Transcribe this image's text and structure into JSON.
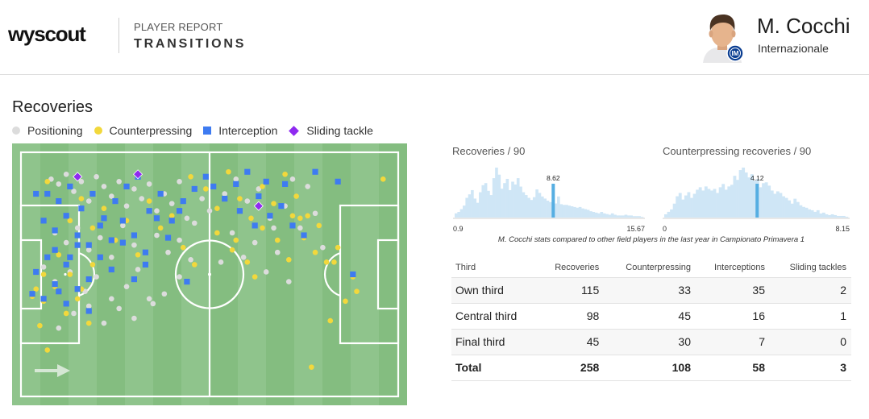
{
  "header": {
    "logo_text": "wyscout",
    "report_kind": "PLAYER REPORT",
    "report_title": "TRANSITIONS",
    "player_name": "M. Cocchi",
    "team": "Internazionale"
  },
  "recoveries": {
    "title": "Recoveries",
    "legend": [
      {
        "label": "Positioning",
        "color": "#dcdcdc",
        "shape": "circle"
      },
      {
        "label": "Counterpressing",
        "color": "#f2d83c",
        "shape": "circle"
      },
      {
        "label": "Interception",
        "color": "#3e7bf1",
        "shape": "square"
      },
      {
        "label": "Sliding tackle",
        "color": "#8f2af0",
        "shape": "diamond"
      }
    ]
  },
  "chart_data": [
    {
      "type": "scatter",
      "title": "Recoveries",
      "x_unit": "pitch length (0 = own goal line, 100 = opponent goal line)",
      "y_unit": "pitch width (0 = top touchline, 100 = bottom touchline)",
      "xlim": [
        0,
        100
      ],
      "ylim": [
        0,
        100
      ],
      "attacking_direction": "left-to-right",
      "series": [
        {
          "name": "Positioning",
          "color": "#dcdcdc",
          "shape": "circle",
          "points": [
            [
              8,
              11
            ],
            [
              10,
              13
            ],
            [
              12,
              9
            ],
            [
              14,
              16
            ],
            [
              16,
              12
            ],
            [
              18,
              20
            ],
            [
              20,
              10
            ],
            [
              22,
              14
            ],
            [
              24,
              18
            ],
            [
              26,
              12
            ],
            [
              28,
              22
            ],
            [
              30,
              15
            ],
            [
              32,
              19
            ],
            [
              34,
              13
            ],
            [
              36,
              24
            ],
            [
              38,
              17
            ],
            [
              40,
              21
            ],
            [
              42,
              12
            ],
            [
              44,
              27
            ],
            [
              9,
              33
            ],
            [
              12,
              37
            ],
            [
              15,
              31
            ],
            [
              18,
              40
            ],
            [
              21,
              35
            ],
            [
              24,
              43
            ],
            [
              27,
              30
            ],
            [
              30,
              38
            ],
            [
              33,
              46
            ],
            [
              36,
              34
            ],
            [
              39,
              41
            ],
            [
              42,
              36
            ],
            [
              45,
              44
            ],
            [
              6,
              47
            ],
            [
              9,
              53
            ],
            [
              13,
              49
            ],
            [
              17,
              57
            ],
            [
              20,
              51
            ],
            [
              24,
              60
            ],
            [
              28,
              55
            ],
            [
              31,
              48
            ],
            [
              35,
              62
            ],
            [
              38,
              58
            ],
            [
              14,
              66
            ],
            [
              18,
              63
            ],
            [
              22,
              70
            ],
            [
              26,
              64
            ],
            [
              30,
              68
            ],
            [
              34,
              60
            ],
            [
              10,
              72
            ],
            [
              42,
              51
            ],
            [
              46,
              29
            ],
            [
              48,
              19
            ],
            [
              50,
              24
            ],
            [
              54,
              17
            ],
            [
              57,
              11
            ],
            [
              60,
              20
            ],
            [
              63,
              15
            ],
            [
              66,
              27
            ],
            [
              70,
              22
            ],
            [
              72,
              11
            ],
            [
              74,
              31
            ],
            [
              56,
              33
            ],
            [
              59,
              43
            ],
            [
              62,
              37
            ],
            [
              65,
              49
            ],
            [
              68,
              41
            ],
            [
              71,
              53
            ],
            [
              67,
              31
            ],
            [
              53,
              45
            ],
            [
              76,
              14
            ],
            [
              78,
              25
            ],
            [
              80,
              39
            ]
          ]
        },
        {
          "name": "Counterpressing",
          "color": "#f2d83c",
          "shape": "circle",
          "points": [
            [
              7,
              12
            ],
            [
              10,
              20
            ],
            [
              13,
              28
            ],
            [
              16,
              19
            ],
            [
              19,
              31
            ],
            [
              22,
              23
            ],
            [
              25,
              36
            ],
            [
              28,
              28
            ],
            [
              31,
              42
            ],
            [
              34,
              20
            ],
            [
              37,
              31
            ],
            [
              40,
              26
            ],
            [
              43,
              39
            ],
            [
              46,
              46
            ],
            [
              10,
              42
            ],
            [
              13,
              50
            ],
            [
              16,
              56
            ],
            [
              19,
              46
            ],
            [
              6,
              61
            ],
            [
              9,
              55
            ],
            [
              12,
              66
            ],
            [
              15,
              60
            ],
            [
              18,
              70
            ],
            [
              6,
              50
            ],
            [
              3,
              59
            ],
            [
              5,
              71
            ],
            [
              7,
              81
            ],
            [
              4,
              56
            ],
            [
              45,
              10
            ],
            [
              49,
              15
            ],
            [
              52,
              23
            ],
            [
              55,
              8
            ],
            [
              58,
              19
            ],
            [
              61,
              27
            ],
            [
              64,
              14
            ],
            [
              67,
              21
            ],
            [
              70,
              9
            ],
            [
              73,
              18
            ],
            [
              76,
              26
            ],
            [
              79,
              30
            ],
            [
              52,
              33
            ],
            [
              56,
              40
            ],
            [
              60,
              45
            ],
            [
              64,
              31
            ],
            [
              68,
              36
            ],
            [
              72,
              26
            ],
            [
              75,
              35
            ],
            [
              78,
              41
            ],
            [
              81,
              45
            ],
            [
              84,
              39
            ],
            [
              88,
              51
            ],
            [
              86,
              61
            ],
            [
              82,
              69
            ],
            [
              96,
              11
            ],
            [
              77,
              88
            ],
            [
              74,
              27
            ],
            [
              71,
              44
            ],
            [
              89,
              57
            ],
            [
              62,
              51
            ],
            [
              57,
              36
            ],
            [
              83,
              45
            ]
          ]
        },
        {
          "name": "Interception",
          "color": "#3e7bf1",
          "shape": "square",
          "points": [
            [
              4,
              17
            ],
            [
              7,
              17
            ],
            [
              10,
              20
            ],
            [
              13,
              14
            ],
            [
              16,
              23
            ],
            [
              19,
              17
            ],
            [
              22,
              27
            ],
            [
              25,
              20
            ],
            [
              28,
              14
            ],
            [
              31,
              10
            ],
            [
              34,
              24
            ],
            [
              37,
              17
            ],
            [
              40,
              28
            ],
            [
              43,
              20
            ],
            [
              6,
              28
            ],
            [
              9,
              32
            ],
            [
              12,
              26
            ],
            [
              15,
              34
            ],
            [
              18,
              38
            ],
            [
              21,
              30
            ],
            [
              24,
              36
            ],
            [
              27,
              28
            ],
            [
              30,
              34
            ],
            [
              33,
              41
            ],
            [
              36,
              27
            ],
            [
              39,
              35
            ],
            [
              42,
              24
            ],
            [
              9,
              40
            ],
            [
              12,
              46
            ],
            [
              15,
              38
            ],
            [
              18,
              52
            ],
            [
              21,
              43
            ],
            [
              24,
              48
            ],
            [
              27,
              37
            ],
            [
              30,
              52
            ],
            [
              33,
              46
            ],
            [
              6,
              60
            ],
            [
              9,
              54
            ],
            [
              12,
              62
            ],
            [
              15,
              56
            ],
            [
              18,
              65
            ],
            [
              4,
              49
            ],
            [
              7,
              43
            ],
            [
              10,
              57
            ],
            [
              13,
              43
            ],
            [
              3,
              58
            ],
            [
              44,
              53
            ],
            [
              46,
              15
            ],
            [
              49,
              10
            ],
            [
              51,
              14
            ],
            [
              54,
              19
            ],
            [
              57,
              13
            ],
            [
              60,
              8
            ],
            [
              63,
              18
            ],
            [
              66,
              26
            ],
            [
              69,
              22
            ],
            [
              72,
              30
            ],
            [
              75,
              34
            ],
            [
              58,
              24
            ],
            [
              62,
              30
            ],
            [
              78,
              8
            ],
            [
              88,
              50
            ],
            [
              70,
              13
            ],
            [
              65,
              12
            ],
            [
              84,
              12
            ]
          ]
        },
        {
          "name": "Sliding tackle",
          "color": "#8f2af0",
          "shape": "diamond",
          "points": [
            [
              15,
              10
            ],
            [
              31,
              9
            ],
            [
              63,
              22
            ]
          ]
        }
      ]
    },
    {
      "type": "histogram",
      "title": "Recoveries / 90",
      "xlim": [
        0.9,
        15.67
      ],
      "highlight": 8.62,
      "values": [
        6,
        8,
        12,
        17,
        28,
        33,
        39,
        27,
        21,
        36,
        46,
        49,
        38,
        32,
        56,
        71,
        61,
        41,
        49,
        55,
        39,
        51,
        47,
        56,
        44,
        36,
        32,
        28,
        25,
        29,
        40,
        35,
        30,
        27,
        24,
        22,
        21,
        20,
        30,
        19,
        18,
        18,
        17,
        16,
        15,
        14,
        15,
        13,
        12,
        11,
        9,
        8,
        7,
        6,
        8,
        6,
        5,
        4,
        6,
        4,
        3,
        3,
        3,
        4,
        3,
        3,
        2,
        2,
        2,
        1
      ]
    },
    {
      "type": "histogram",
      "title": "Counterpressing recoveries / 90",
      "xlim": [
        0,
        8.15
      ],
      "highlight": 4.12,
      "values": [
        4,
        7,
        10,
        17,
        26,
        30,
        22,
        27,
        31,
        24,
        29,
        34,
        37,
        33,
        38,
        35,
        33,
        35,
        30,
        37,
        41,
        34,
        38,
        40,
        51,
        46,
        58,
        61,
        55,
        49,
        53,
        45,
        47,
        37,
        42,
        43,
        39,
        33,
        29,
        32,
        30,
        26,
        24,
        21,
        17,
        23,
        19,
        15,
        13,
        12,
        10,
        9,
        7,
        9,
        5,
        6,
        4,
        3,
        4,
        3,
        2,
        2,
        2,
        1
      ]
    },
    {
      "type": "table",
      "columns": [
        "Third",
        "Recoveries",
        "Counterpressing",
        "Interceptions",
        "Sliding tackles"
      ],
      "rows": [
        [
          "Own third",
          115,
          33,
          35,
          2
        ],
        [
          "Central third",
          98,
          45,
          16,
          1
        ],
        [
          "Final third",
          45,
          30,
          7,
          0
        ]
      ],
      "total": [
        "Total",
        258,
        108,
        58,
        3
      ]
    }
  ],
  "histograms": {
    "recoveries": {
      "title": "Recoveries / 90",
      "min_label": "0.9",
      "max_label": "15.67",
      "value_label": "8.62"
    },
    "counterpressing": {
      "title": "Counterpressing recoveries / 90",
      "min_label": "0",
      "max_label": "8.15",
      "value_label": "4.12"
    },
    "note": "M. Cocchi stats compared to other field players in the last year in Campionato Primavera 1"
  },
  "table": {
    "headers": [
      "Third",
      "Recoveries",
      "Counterpressing",
      "Interceptions",
      "Sliding tackles"
    ],
    "rows": [
      [
        "Own third",
        "115",
        "33",
        "35",
        "2"
      ],
      [
        "Central third",
        "98",
        "45",
        "16",
        "1"
      ],
      [
        "Final third",
        "45",
        "30",
        "7",
        "0"
      ]
    ],
    "total": [
      "Total",
      "258",
      "108",
      "58",
      "3"
    ]
  },
  "colors": {
    "pitch_light": "#8fc48c",
    "pitch_dark": "#84bd80",
    "histogram_bar": "#cfe6f6",
    "histogram_highlight": "#56aee2"
  }
}
